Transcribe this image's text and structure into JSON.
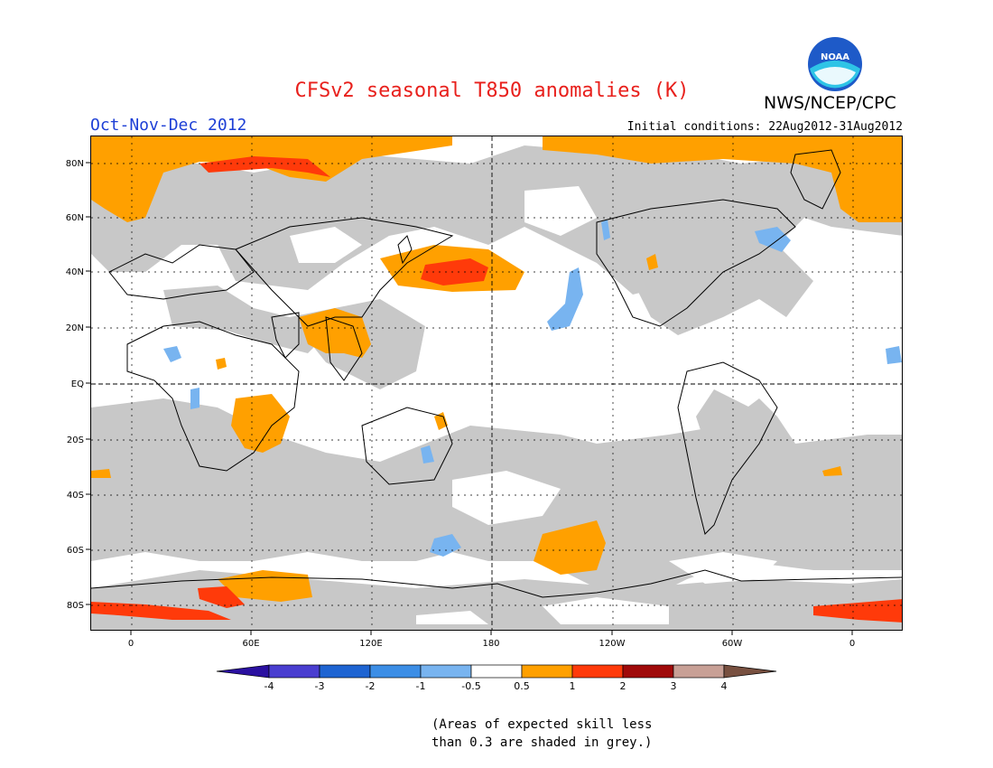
{
  "title": "CFSv2 seasonal T850 anomalies (K)",
  "agency": "NWS/NCEP/CPC",
  "logo_text": "NOAA",
  "season": "Oct-Nov-Dec 2012",
  "initial_conditions": "Initial conditions: 22Aug2012-31Aug2012",
  "map": {
    "lat_labels": [
      "80N",
      "60N",
      "40N",
      "20N",
      "EQ",
      "20S",
      "40S",
      "60S",
      "80S"
    ],
    "lon_labels": [
      "0",
      "60E",
      "120E",
      "180",
      "120W",
      "60W",
      "0"
    ],
    "colors": {
      "grey_low_skill": "#c8c8c8",
      "warm_05_1": "#ffa000",
      "warm_1_2": "#ff3a0a",
      "cool_m1_m05": "#78b4f0"
    }
  },
  "legend": {
    "labels": [
      "-4",
      "-3",
      "-2",
      "-1",
      "-0.5",
      "0.5",
      "1",
      "2",
      "3",
      "4"
    ],
    "colors": [
      "#2a10a0",
      "#4a3ed0",
      "#1e64d2",
      "#3c8ee6",
      "#78b4f0",
      "#ffffff",
      "#ffa000",
      "#ff3a0a",
      "#a00a0a",
      "#c8a096",
      "#785040"
    ]
  },
  "note": [
    "(Areas of expected skill less",
    "than 0.3 are shaded in grey.)"
  ]
}
